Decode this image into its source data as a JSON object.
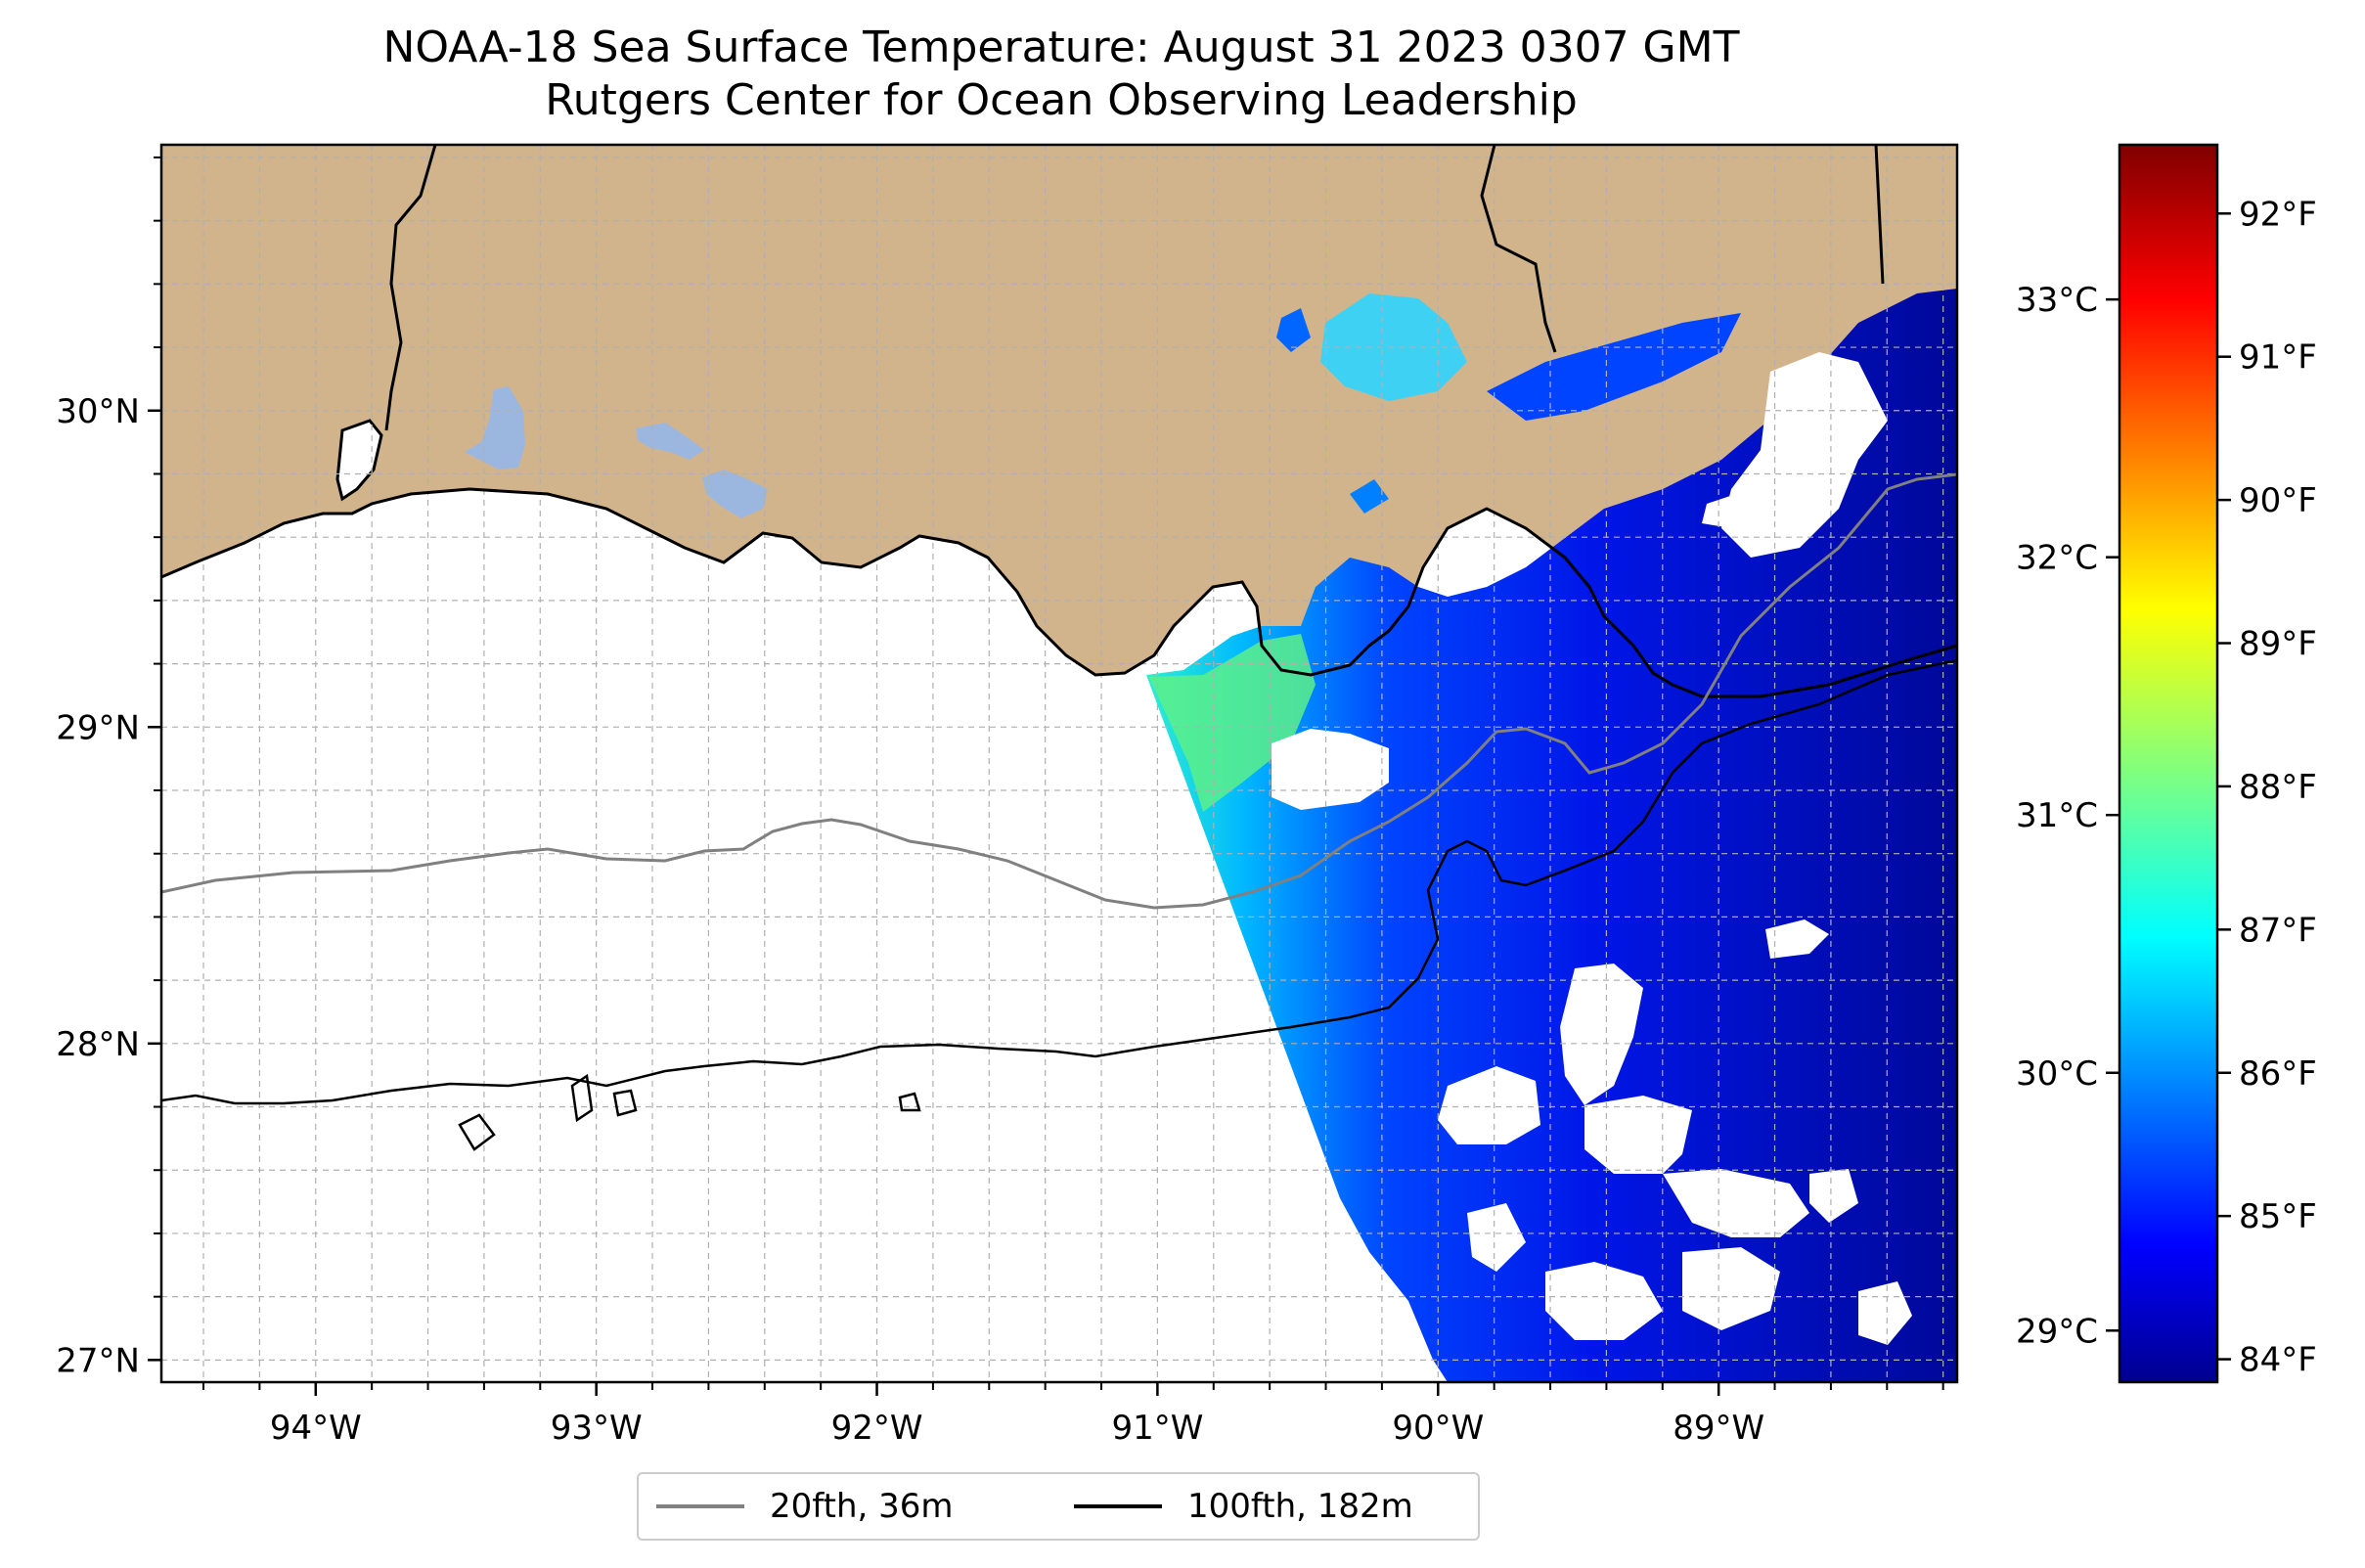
{
  "title": {
    "line1": "NOAA-18 Sea Surface Temperature: August 31 2023 0307 GMT",
    "line2": "Rutgers Center for Ocean Observing Leadership"
  },
  "map": {
    "lon_range": [
      -94.55,
      -88.15
    ],
    "lat_range": [
      26.93,
      30.84
    ],
    "x_ticks": [
      -94,
      -93,
      -92,
      -91,
      -90,
      -89
    ],
    "x_tick_labels": [
      "94°W",
      "93°W",
      "92°W",
      "91°W",
      "90°W",
      "89°W"
    ],
    "y_ticks": [
      27,
      28,
      29,
      30
    ],
    "y_tick_labels": [
      "27°N",
      "28°N",
      "29°N",
      "30°N"
    ],
    "grid": true,
    "colors": {
      "land": "#d2b48c",
      "lakes": "#9bb7e0",
      "coastline": "#000000",
      "isobath_20": "#808080",
      "isobath_100": "#000000",
      "grid": "#b0b0b0"
    }
  },
  "legend": {
    "items": [
      {
        "label": "20fth, 36m",
        "color": "#808080"
      },
      {
        "label": "100fth, 182m",
        "color": "#000000"
      }
    ]
  },
  "colorbar": {
    "colormap": "jet",
    "range_c": [
      28.8,
      33.6
    ],
    "celsius_ticks": [
      29,
      30,
      31,
      32,
      33
    ],
    "celsius_labels": [
      "29°C",
      "30°C",
      "31°C",
      "32°C",
      "33°C"
    ],
    "fahrenheit_ticks": [
      84,
      85,
      86,
      87,
      88,
      89,
      90,
      91,
      92
    ],
    "fahrenheit_labels": [
      "84°F",
      "85°F",
      "86°F",
      "87°F",
      "88°F",
      "89°F",
      "90°F",
      "91°F",
      "92°F"
    ]
  }
}
